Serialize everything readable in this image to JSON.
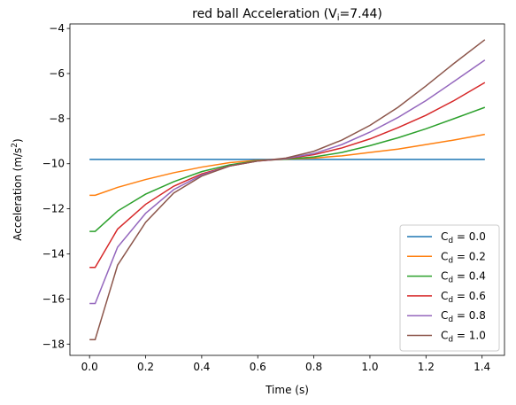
{
  "chart_data": {
    "type": "line",
    "title_main": "red ball Acceleration (V",
    "title_sub": "i",
    "title_end": "=7.44)",
    "xlabel": "Time (s)",
    "ylabel_main": "Acceleration (m/s",
    "ylabel_sup": "2",
    "ylabel_end": ")",
    "xlim": [
      -0.07,
      1.48
    ],
    "ylim": [
      -18.5,
      -3.8
    ],
    "xticks": [
      0.0,
      0.2,
      0.4,
      0.6,
      0.8,
      1.0,
      1.2,
      1.4
    ],
    "xtick_labels": [
      "0.0",
      "0.2",
      "0.4",
      "0.6",
      "0.8",
      "1.0",
      "1.2",
      "1.4"
    ],
    "yticks": [
      -18,
      -16,
      -14,
      -12,
      -10,
      -8,
      -6,
      -4
    ],
    "ytick_labels": [
      "−18",
      "−16",
      "−14",
      "−12",
      "−10",
      "−8",
      "−6",
      "−4"
    ],
    "grid": false,
    "legend_position": "lower-right",
    "legend_prefix": "C",
    "legend_sub": "d",
    "legend_eq": " = ",
    "x": [
      0.0,
      0.02,
      0.1,
      0.2,
      0.3,
      0.4,
      0.5,
      0.6,
      0.7,
      0.8,
      0.9,
      1.0,
      1.1,
      1.2,
      1.3,
      1.41
    ],
    "series": [
      {
        "name": "0.0",
        "color": "#1f77b4",
        "values": [
          -9.81,
          -9.81,
          -9.81,
          -9.81,
          -9.81,
          -9.81,
          -9.81,
          -9.81,
          -9.81,
          -9.81,
          -9.81,
          -9.81,
          -9.81,
          -9.81,
          -9.81,
          -9.81
        ]
      },
      {
        "name": "0.2",
        "color": "#ff7f0e",
        "values": [
          -11.4,
          -11.4,
          -11.05,
          -10.7,
          -10.4,
          -10.15,
          -9.95,
          -9.85,
          -9.8,
          -9.75,
          -9.65,
          -9.5,
          -9.35,
          -9.15,
          -8.95,
          -8.7
        ]
      },
      {
        "name": "0.4",
        "color": "#2ca02c",
        "values": [
          -13.0,
          -13.0,
          -12.1,
          -11.35,
          -10.8,
          -10.35,
          -10.05,
          -9.87,
          -9.8,
          -9.7,
          -9.5,
          -9.2,
          -8.85,
          -8.45,
          -8.0,
          -7.5
        ]
      },
      {
        "name": "0.6",
        "color": "#d62728",
        "values": [
          -14.6,
          -14.6,
          -12.9,
          -11.8,
          -11.0,
          -10.45,
          -10.1,
          -9.88,
          -9.78,
          -9.6,
          -9.3,
          -8.9,
          -8.4,
          -7.85,
          -7.2,
          -6.4
        ]
      },
      {
        "name": "0.8",
        "color": "#9467bd",
        "values": [
          -16.2,
          -16.2,
          -13.7,
          -12.2,
          -11.15,
          -10.5,
          -10.1,
          -9.88,
          -9.77,
          -9.55,
          -9.15,
          -8.6,
          -7.95,
          -7.2,
          -6.35,
          -5.4
        ]
      },
      {
        "name": "1.0",
        "color": "#8c564b",
        "values": [
          -17.8,
          -17.8,
          -14.5,
          -12.6,
          -11.3,
          -10.55,
          -10.1,
          -9.88,
          -9.75,
          -9.45,
          -8.95,
          -8.3,
          -7.5,
          -6.55,
          -5.55,
          -4.5
        ]
      }
    ]
  }
}
